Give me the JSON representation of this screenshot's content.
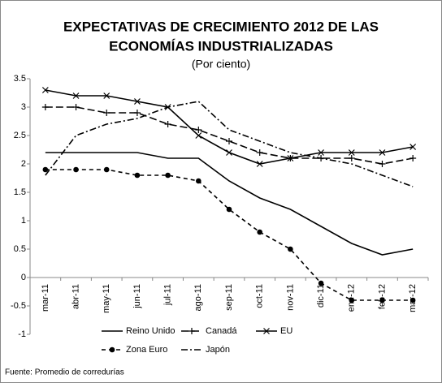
{
  "chart_data": {
    "type": "line",
    "title": [
      "EXPECTATIVAS DE CRECIMIENTO 2012 DE LAS",
      "ECONOMÍAS INDUSTRIALIZADAS"
    ],
    "subtitle": "(Por ciento)",
    "source": "Fuente: Promedio de corredurías",
    "categories": [
      "mar-11",
      "abr-11",
      "may-11",
      "jun-11",
      "jul-11",
      "ago-11",
      "sep-11",
      "oct-11",
      "nov-11",
      "dic-11",
      "ene-12",
      "feb-12",
      "mar-12"
    ],
    "ylim": [
      -1,
      3.5
    ],
    "yticks": [
      -1,
      -0.5,
      0,
      0.5,
      1,
      1.5,
      2,
      2.5,
      3,
      3.5
    ],
    "grid": false,
    "legend": "bottom",
    "series": [
      {
        "name": "Reino Unido",
        "color": "#000000",
        "dash": "solid",
        "marker": "none",
        "values": [
          2.2,
          2.2,
          2.2,
          2.2,
          2.1,
          2.1,
          1.7,
          1.4,
          1.2,
          0.9,
          0.6,
          0.4,
          0.5
        ]
      },
      {
        "name": "Canadá",
        "color": "#000000",
        "dash": "longdash",
        "marker": "plus",
        "values": [
          3.0,
          3.0,
          2.9,
          2.9,
          2.7,
          2.6,
          2.4,
          2.2,
          2.1,
          2.1,
          2.1,
          2.0,
          2.1
        ]
      },
      {
        "name": "EU",
        "color": "#000000",
        "dash": "solid",
        "marker": "x",
        "values": [
          3.3,
          3.2,
          3.2,
          3.1,
          3.0,
          2.5,
          2.2,
          2.0,
          2.1,
          2.2,
          2.2,
          2.2,
          2.3
        ]
      },
      {
        "name": "Zona Euro",
        "color": "#000000",
        "dash": "dash",
        "marker": "circle",
        "values": [
          1.9,
          1.9,
          1.9,
          1.8,
          1.8,
          1.7,
          1.2,
          0.8,
          0.5,
          -0.1,
          -0.4,
          -0.4,
          -0.4
        ]
      },
      {
        "name": "Japón",
        "color": "#000000",
        "dash": "dashdot",
        "marker": "none",
        "values": [
          1.8,
          2.5,
          2.7,
          2.8,
          3.0,
          3.1,
          2.6,
          2.4,
          2.2,
          2.1,
          2.0,
          1.8,
          1.6
        ]
      }
    ]
  }
}
